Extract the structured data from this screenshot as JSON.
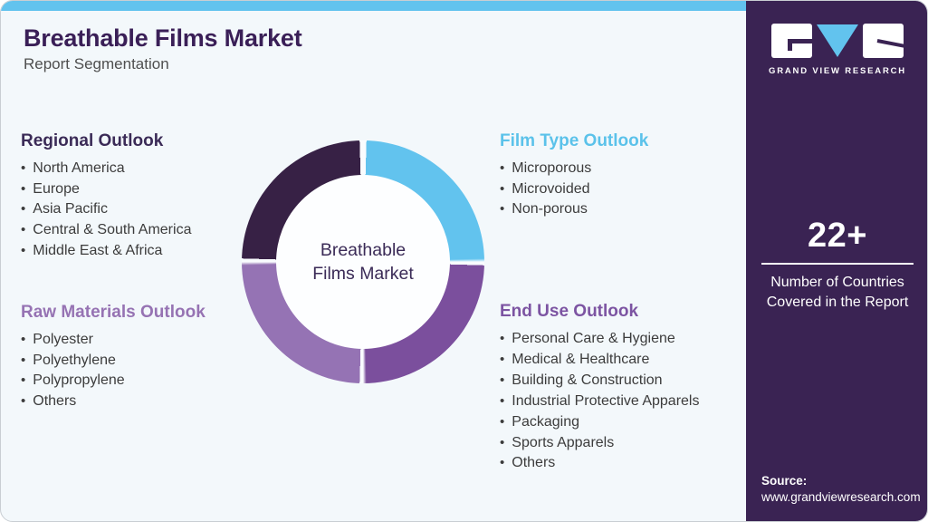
{
  "page": {
    "title": "Breathable Films Market",
    "subtitle": "Report Segmentation"
  },
  "colors": {
    "accent_strip": "#62c3ee",
    "sidebar_bg": "#3a2353",
    "background": "#f3f8fb",
    "title_text": "#3a1f57",
    "body_text": "#3c3c3c",
    "gap_color": "#f9fcfe",
    "hole_color": "#fdfeff"
  },
  "donut": {
    "center_label_lines": [
      "Breathable",
      "Films Market"
    ],
    "segments": [
      {
        "name": "film-type",
        "color": "#62c3ee",
        "share": 25
      },
      {
        "name": "end-use",
        "color": "#7b4f9d",
        "share": 25
      },
      {
        "name": "raw-materials",
        "color": "#9573b4",
        "share": 25
      },
      {
        "name": "regional",
        "color": "#372145",
        "share": 25
      }
    ]
  },
  "sections": [
    {
      "id": "regional",
      "title": "Regional Outlook",
      "color": "#3b2b57",
      "items": [
        "North America",
        "Europe",
        "Asia Pacific",
        "Central & South America",
        "Middle East & Africa"
      ]
    },
    {
      "id": "raw-materials",
      "title": "Raw Materials Outlook",
      "color": "#9673b3",
      "items": [
        "Polyester",
        "Polyethylene",
        "Polypropylene",
        "Others"
      ]
    },
    {
      "id": "film-type",
      "title": "Film Type Outlook",
      "color": "#5bc2ea",
      "items": [
        "Microporous",
        "Microvoided",
        "Non-porous"
      ]
    },
    {
      "id": "end-use",
      "title": "End Use Outlook",
      "color": "#7c54a2",
      "items": [
        "Personal Care & Hygiene",
        "Medical & Healthcare",
        "Building & Construction",
        "Industrial Protective Apparels",
        "Packaging",
        "Sports Apparels",
        "Others"
      ]
    }
  ],
  "sidebar": {
    "logo_text": "GRAND VIEW RESEARCH",
    "stat_value": "22+",
    "stat_caption_lines": [
      "Number of Countries",
      "Covered in the Report"
    ],
    "source_label": "Source:",
    "source_url": "www.grandviewresearch.com"
  }
}
